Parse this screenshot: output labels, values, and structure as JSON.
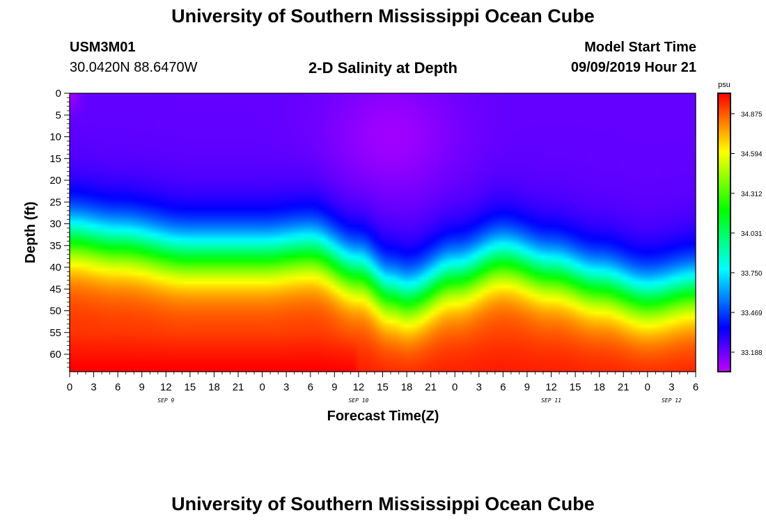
{
  "page": {
    "title": "University of Southern Mississippi Ocean Cube",
    "footer_title": "University of Southern Mississippi Ocean Cube"
  },
  "header": {
    "station_id": "USM3M01",
    "location": "30.0420N 88.6470W",
    "plot_title": "2-D Salinity at Depth",
    "model_label": "Model Start Time",
    "model_time": "09/09/2019 Hour 21"
  },
  "chart_data": {
    "type": "heatmap",
    "title": "2-D Salinity at Depth",
    "xlabel": "Forecast Time(Z)",
    "ylabel": "Depth (ft)",
    "ylim": [
      0,
      64
    ],
    "y_ticks": [
      0,
      5,
      10,
      15,
      20,
      25,
      30,
      35,
      40,
      45,
      50,
      55,
      60
    ],
    "x_range_hours": [
      0,
      78
    ],
    "x_tick_hours": [
      0,
      3,
      6,
      9,
      12,
      15,
      18,
      21,
      24,
      27,
      30,
      33,
      36,
      39,
      42,
      45,
      48,
      51,
      54,
      57,
      60,
      63,
      66,
      69,
      72,
      75,
      78
    ],
    "x_tick_labels": [
      "0",
      "3",
      "6",
      "9",
      "12",
      "15",
      "18",
      "21",
      "0",
      "3",
      "6",
      "9",
      "12",
      "15",
      "18",
      "21",
      "0",
      "3",
      "6",
      "9",
      "12",
      "15",
      "18",
      "21",
      "0",
      "3",
      "6"
    ],
    "date_labels": [
      {
        "text": "SEP 9",
        "hour": 12
      },
      {
        "text": "SEP 10",
        "hour": 36
      },
      {
        "text": "SEP 11",
        "hour": 60
      },
      {
        "text": "SEP 12",
        "hour": 75
      }
    ],
    "colorbar": {
      "unit": "psu",
      "min": 33.05,
      "max": 35.02,
      "tick_values": [
        33.188,
        33.469,
        33.75,
        34.031,
        34.312,
        34.594,
        34.875
      ],
      "tick_labels": [
        "33.188",
        "33.469",
        "33.750",
        "34.031",
        "34.312",
        "34.594",
        "34.875"
      ]
    },
    "field_description": {
      "surface_salinity_psu": 33.2,
      "bottom_salinity_psu": 34.95,
      "halocline_center_depth_ft": [
        {
          "hour": 0,
          "depth": 33
        },
        {
          "hour": 6,
          "depth": 34.5
        },
        {
          "hour": 15,
          "depth": 37
        },
        {
          "hour": 24,
          "depth": 37
        },
        {
          "hour": 30,
          "depth": 36
        },
        {
          "hour": 36,
          "depth": 41
        },
        {
          "hour": 40,
          "depth": 46
        },
        {
          "hour": 42,
          "depth": 47
        },
        {
          "hour": 48,
          "depth": 42
        },
        {
          "hour": 54,
          "depth": 38
        },
        {
          "hour": 60,
          "depth": 41
        },
        {
          "hour": 66,
          "depth": 44
        },
        {
          "hour": 72,
          "depth": 47
        },
        {
          "hour": 78,
          "depth": 45
        }
      ]
    }
  }
}
